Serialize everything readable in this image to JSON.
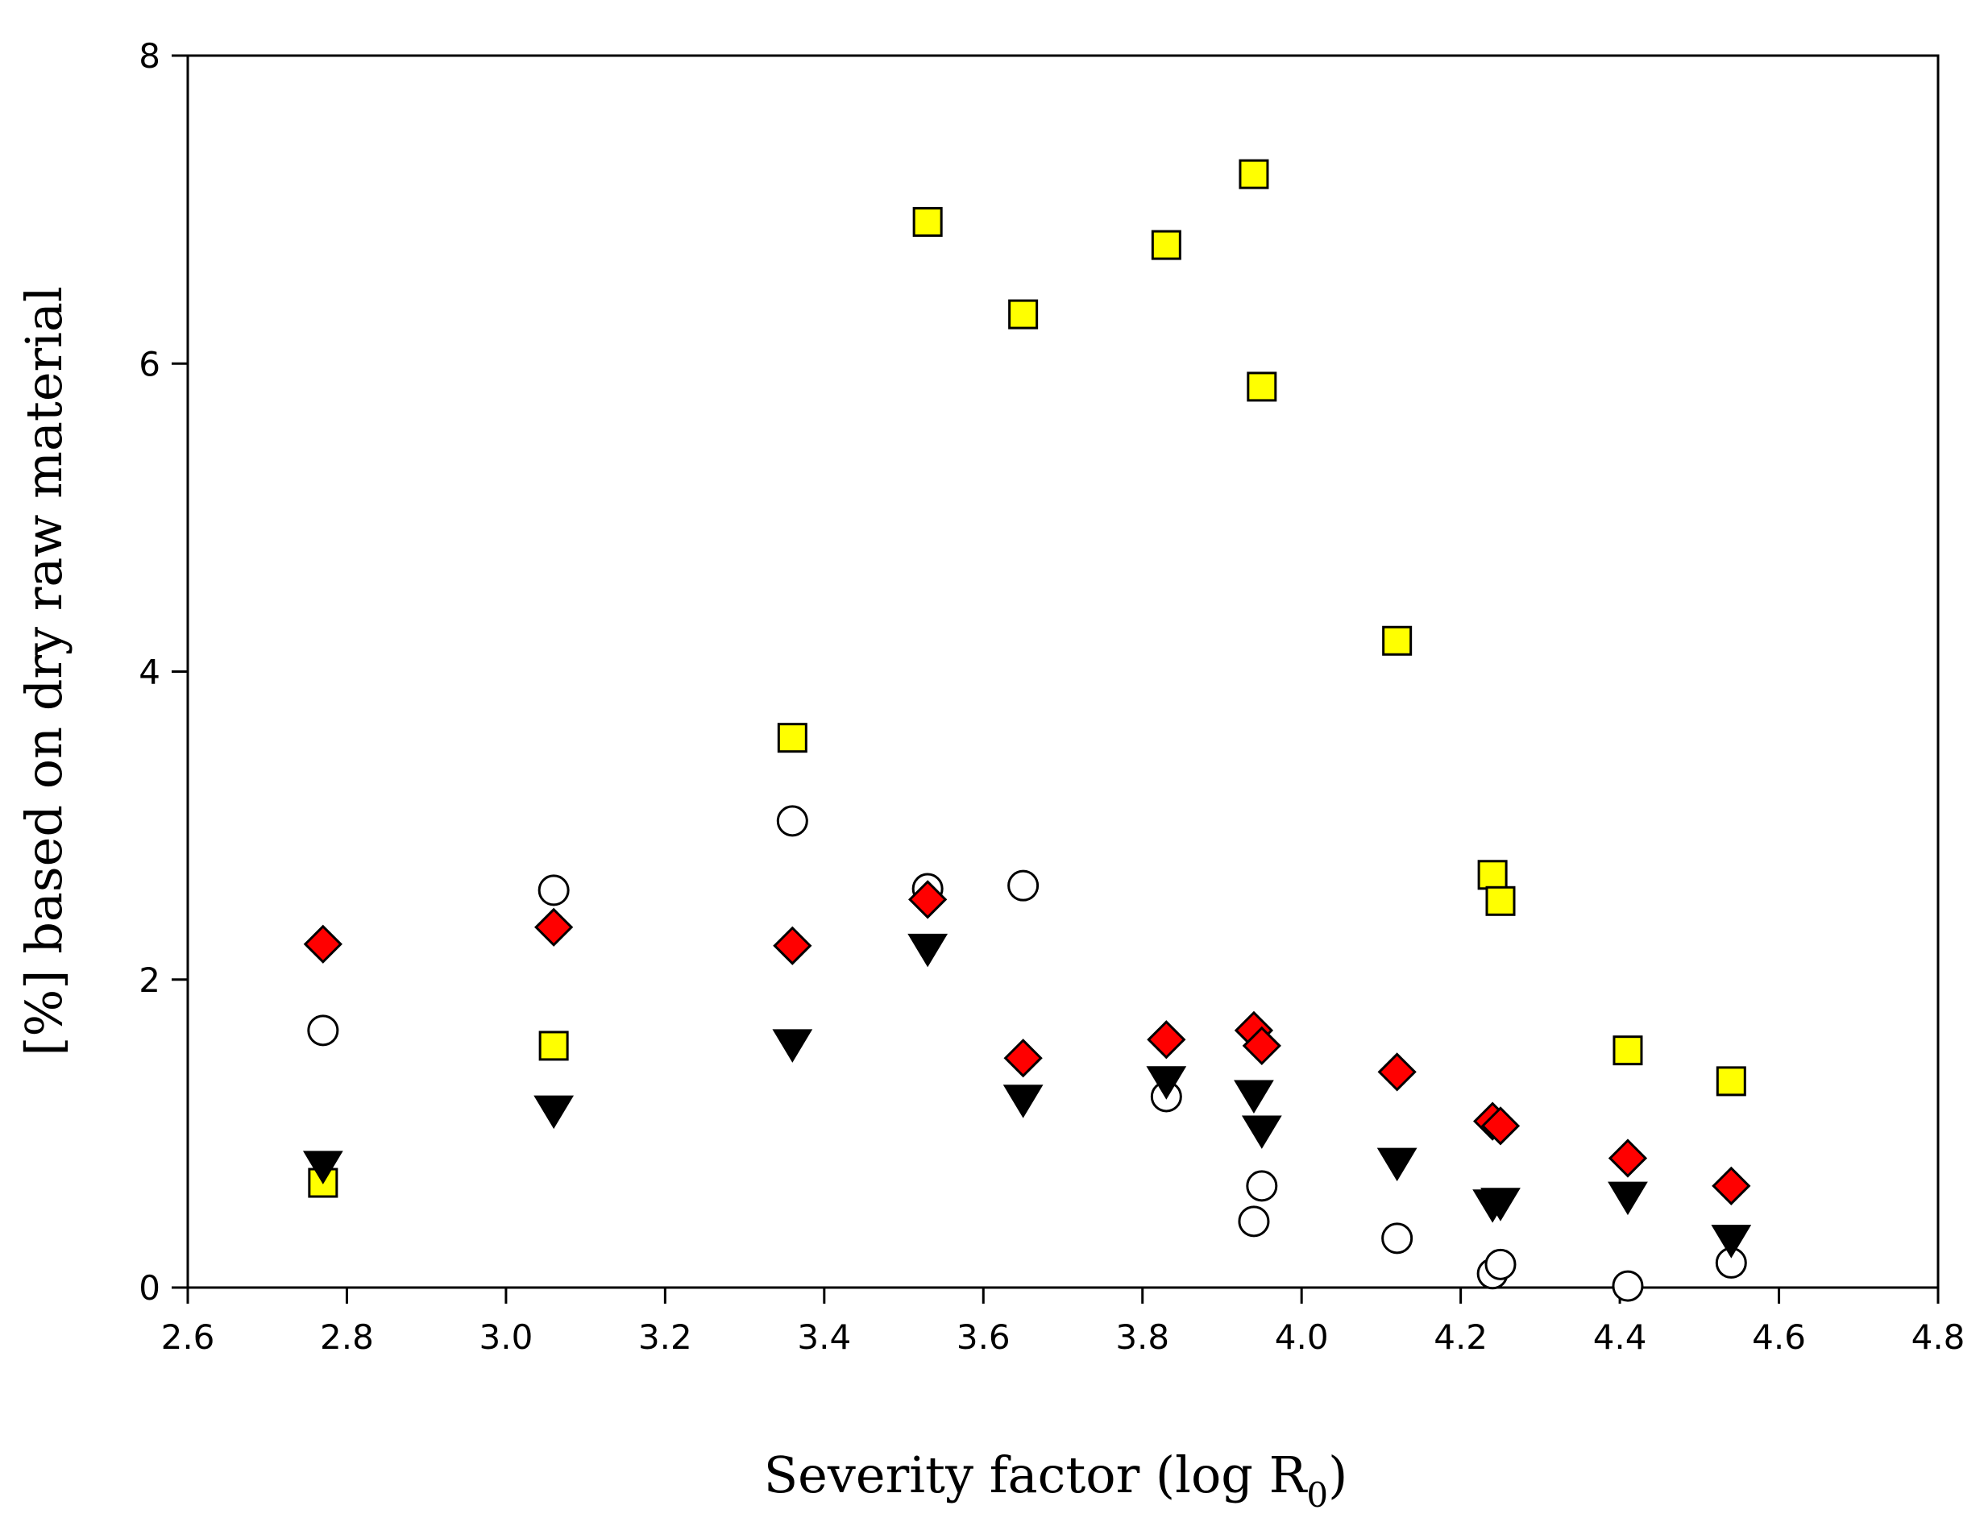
{
  "chart_data": {
    "type": "scatter",
    "title": "",
    "xlabel": "Severity factor (log R",
    "xlabel_subscript": "0",
    "xlabel_suffix": ")",
    "ylabel": "[%] based on dry raw material",
    "xlim": [
      2.6,
      4.8
    ],
    "ylim": [
      0,
      8
    ],
    "xticks": [
      "2.6",
      "2.8",
      "3.0",
      "3.2",
      "3.4",
      "3.6",
      "3.8",
      "4.0",
      "4.2",
      "4.4",
      "4.6",
      "4.8"
    ],
    "xtick_values": [
      2.6,
      2.8,
      3.0,
      3.2,
      3.4,
      3.6,
      3.8,
      4.0,
      4.2,
      4.4,
      4.6,
      4.8
    ],
    "yticks": [
      "0",
      "2",
      "4",
      "6",
      "8"
    ],
    "ytick_values": [
      0,
      2,
      4,
      6,
      8
    ],
    "grid": false,
    "legend": "none",
    "series": [
      {
        "name": "yellow-squares",
        "marker": "square",
        "fill": "#ffff00",
        "stroke": "#000000",
        "x": [
          2.77,
          3.06,
          3.36,
          3.53,
          3.65,
          3.83,
          3.94,
          3.95,
          4.12,
          4.24,
          4.25,
          4.41,
          4.54
        ],
        "y": [
          0.68,
          1.57,
          3.57,
          6.92,
          6.32,
          6.77,
          7.23,
          5.85,
          4.2,
          2.68,
          2.51,
          1.54,
          1.34
        ]
      },
      {
        "name": "open-circles",
        "marker": "circle",
        "fill": "#ffffff",
        "stroke": "#000000",
        "x": [
          2.77,
          3.06,
          3.36,
          3.53,
          3.65,
          3.83,
          3.94,
          3.95,
          4.12,
          4.24,
          4.25,
          4.41,
          4.54
        ],
        "y": [
          1.67,
          2.58,
          3.03,
          2.59,
          2.61,
          1.24,
          0.43,
          0.66,
          0.32,
          0.09,
          0.15,
          0.01,
          0.16
        ]
      },
      {
        "name": "red-diamonds",
        "marker": "diamond",
        "fill": "#ff0000",
        "stroke": "#000000",
        "x": [
          2.77,
          3.06,
          3.36,
          3.53,
          3.65,
          3.83,
          3.94,
          3.95,
          4.12,
          4.24,
          4.25,
          4.41,
          4.54
        ],
        "y": [
          2.23,
          2.34,
          2.22,
          2.52,
          1.49,
          1.61,
          1.67,
          1.57,
          1.4,
          1.08,
          1.05,
          0.84,
          0.66
        ]
      },
      {
        "name": "black-triangles",
        "marker": "triangle-down",
        "fill": "#000000",
        "stroke": "#000000",
        "x": [
          2.77,
          3.06,
          3.36,
          3.53,
          3.65,
          3.83,
          3.94,
          3.95,
          4.12,
          4.24,
          4.25,
          4.41,
          4.54
        ],
        "y": [
          0.78,
          1.14,
          1.57,
          2.19,
          1.21,
          1.33,
          1.24,
          1.01,
          0.8,
          0.53,
          0.54,
          0.58,
          0.3
        ]
      }
    ]
  }
}
